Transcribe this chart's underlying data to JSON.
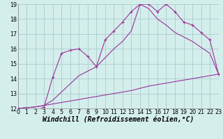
{
  "xlabel": "Windchill (Refroidissement éolien,°C)",
  "bg_color": "#d4eeec",
  "line_color": "#993399",
  "grid_color": "#aacccc",
  "xmin": 0,
  "xmax": 23,
  "ymin": 12,
  "ymax": 19,
  "series1_x": [
    0,
    1,
    2,
    3,
    4,
    5,
    6,
    7,
    8,
    9,
    10,
    11,
    12,
    13,
    14,
    15,
    16,
    17,
    18,
    19,
    20,
    21,
    22,
    23
  ],
  "series1_y": [
    12.0,
    11.9,
    11.8,
    12.1,
    14.1,
    15.7,
    15.9,
    16.0,
    15.5,
    14.8,
    16.6,
    17.2,
    17.8,
    18.5,
    19.0,
    19.0,
    18.5,
    19.0,
    18.5,
    17.8,
    17.6,
    17.1,
    16.6,
    14.3
  ],
  "series2_x": [
    0,
    1,
    2,
    3,
    4,
    5,
    6,
    7,
    8,
    9,
    10,
    11,
    12,
    13,
    14,
    15,
    16,
    17,
    18,
    19,
    20,
    21,
    22,
    23
  ],
  "series2_y": [
    12.0,
    12.05,
    12.1,
    12.2,
    12.3,
    12.4,
    12.5,
    12.6,
    12.7,
    12.8,
    12.9,
    13.0,
    13.1,
    13.2,
    13.35,
    13.5,
    13.6,
    13.7,
    13.8,
    13.9,
    14.0,
    14.1,
    14.2,
    14.3
  ],
  "series3_x": [
    0,
    1,
    2,
    3,
    4,
    5,
    6,
    7,
    8,
    9,
    10,
    11,
    12,
    13,
    14,
    15,
    16,
    17,
    18,
    19,
    20,
    21,
    22,
    23
  ],
  "series3_y": [
    12.0,
    12.05,
    12.1,
    12.2,
    12.55,
    13.1,
    13.65,
    14.2,
    14.5,
    14.8,
    15.4,
    16.0,
    16.5,
    17.2,
    19.0,
    18.7,
    18.0,
    17.6,
    17.1,
    16.8,
    16.5,
    16.1,
    15.7,
    14.3
  ],
  "tick_fontsize": 5.8,
  "xlabel_fontsize": 7.0
}
